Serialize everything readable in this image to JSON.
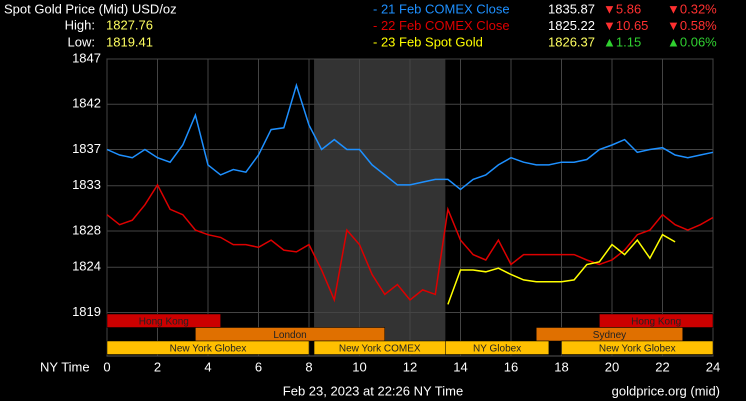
{
  "chart_data": {
    "type": "line",
    "title": "Spot Gold Price (Mid) USD/oz",
    "high_label": "High:",
    "high": 1827.76,
    "low_label": "Low:",
    "low": 1819.41,
    "x_label": "NY Time",
    "footer": "Feb 23, 2023 at 22:26 NY Time",
    "source": "goldprice.org (mid)",
    "xlim": [
      0,
      24
    ],
    "xticks": [
      0,
      2,
      4,
      6,
      8,
      10,
      12,
      14,
      16,
      18,
      20,
      22,
      24
    ],
    "ylim": [
      1814.2,
      1847
    ],
    "yticks": [
      1819,
      1824,
      1828,
      1833,
      1837,
      1842,
      1847
    ],
    "grid": true,
    "series": [
      {
        "name": "- 21 Feb COMEX Close",
        "color": "#1e90ff",
        "close": 1835.87,
        "change": "▼5.86",
        "change_pct": "▼0.32%",
        "change_color": "#ff3030",
        "x": [
          0,
          0.5,
          1,
          1.5,
          2,
          2.5,
          3,
          3.5,
          4,
          4.5,
          5,
          5.5,
          6,
          6.5,
          7,
          7.5,
          8,
          8.5,
          9,
          9.5,
          10,
          10.5,
          11,
          11.5,
          12,
          12.5,
          13,
          13.5,
          14,
          14.5,
          15,
          15.5,
          16,
          16.5,
          17,
          17.5,
          18,
          18.5,
          19,
          19.5,
          20,
          20.5,
          21,
          21.5,
          22,
          22.5,
          23,
          23.5,
          24
        ],
        "values": [
          1837.0,
          1836.4,
          1836.1,
          1837.0,
          1836.1,
          1835.6,
          1837.5,
          1840.8,
          1835.3,
          1834.2,
          1834.8,
          1834.5,
          1836.4,
          1839.2,
          1839.4,
          1844.1,
          1839.7,
          1837.0,
          1838.1,
          1837.0,
          1837.0,
          1835.3,
          1834.2,
          1833.1,
          1833.1,
          1833.4,
          1833.7,
          1833.7,
          1832.6,
          1833.7,
          1834.2,
          1835.3,
          1836.1,
          1835.6,
          1835.3,
          1835.3,
          1835.6,
          1835.6,
          1835.9,
          1837.0,
          1837.5,
          1838.1,
          1836.7,
          1837.0,
          1837.2,
          1836.4,
          1836.1,
          1836.4,
          1836.7
        ]
      },
      {
        "name": "- 22 Feb COMEX Close",
        "color": "#dd0000",
        "close": 1825.22,
        "change": "▼10.65",
        "change_pct": "▼0.58%",
        "change_color": "#ff3030",
        "x": [
          0,
          0.5,
          1,
          1.5,
          2,
          2.5,
          3,
          3.5,
          4,
          4.5,
          5,
          5.5,
          6,
          6.5,
          7,
          7.5,
          8,
          8.5,
          9,
          9.5,
          10,
          10.5,
          11,
          11.5,
          12,
          12.5,
          13,
          13.5,
          14,
          14.5,
          15,
          15.5,
          16,
          16.5,
          17,
          17.5,
          18,
          18.5,
          19,
          19.5,
          20,
          20.5,
          21,
          21.5,
          22,
          22.5,
          23,
          23.5,
          24
        ],
        "values": [
          1829.8,
          1828.7,
          1829.2,
          1830.9,
          1833.1,
          1830.4,
          1829.8,
          1828.1,
          1827.6,
          1827.3,
          1826.5,
          1826.5,
          1826.2,
          1827.0,
          1825.9,
          1825.7,
          1826.5,
          1823.7,
          1820.4,
          1828.1,
          1826.5,
          1823.2,
          1821.0,
          1822.1,
          1820.4,
          1821.5,
          1821.0,
          1830.4,
          1827.0,
          1825.4,
          1824.8,
          1827.0,
          1824.3,
          1825.4,
          1825.4,
          1825.4,
          1825.4,
          1825.4,
          1824.8,
          1824.3,
          1824.8,
          1825.9,
          1827.6,
          1828.1,
          1829.8,
          1828.7,
          1828.1,
          1828.7,
          1829.5
        ]
      },
      {
        "name": "- 23 Feb Spot Gold",
        "color": "#ffff00",
        "close": 1826.37,
        "change": "▲1.15",
        "change_pct": "▲0.06%",
        "change_color": "#30d030",
        "x": [
          13.5,
          14,
          14.5,
          15,
          15.5,
          16,
          16.5,
          17,
          17.5,
          18,
          18.5,
          19,
          19.5,
          20,
          20.5,
          21,
          21.5,
          22,
          22.5
        ],
        "values": [
          1819.9,
          1823.7,
          1823.7,
          1823.5,
          1823.9,
          1823.2,
          1822.6,
          1822.4,
          1822.4,
          1822.4,
          1822.6,
          1824.3,
          1824.6,
          1826.5,
          1825.4,
          1827.0,
          1825.0,
          1827.6,
          1826.8
        ]
      }
    ],
    "sessions": [
      {
        "label": "Hong Kong",
        "start": 0,
        "end": 4.5,
        "row": 0,
        "color": "#cc0000"
      },
      {
        "label": "Hong Kong",
        "start": 19.5,
        "end": 24,
        "row": 0,
        "color": "#cc0000"
      },
      {
        "label": "London",
        "start": 3.5,
        "end": 11,
        "row": 1,
        "color": "#e07000"
      },
      {
        "label": "Sydney",
        "start": 17,
        "end": 22.8,
        "row": 1,
        "color": "#e07000"
      },
      {
        "label": "New York Globex",
        "start": 0,
        "end": 8,
        "row": 2,
        "color": "#ffc000"
      },
      {
        "label": "New York COMEX",
        "start": 8.2,
        "end": 13.4,
        "row": 2,
        "color": "#ffc000",
        "shade": true
      },
      {
        "label": "NY Globex",
        "start": 13.4,
        "end": 17.5,
        "row": 2,
        "color": "#ffc000"
      },
      {
        "label": "New York Globex",
        "start": 18,
        "end": 24,
        "row": 2,
        "color": "#ffc000"
      }
    ]
  }
}
